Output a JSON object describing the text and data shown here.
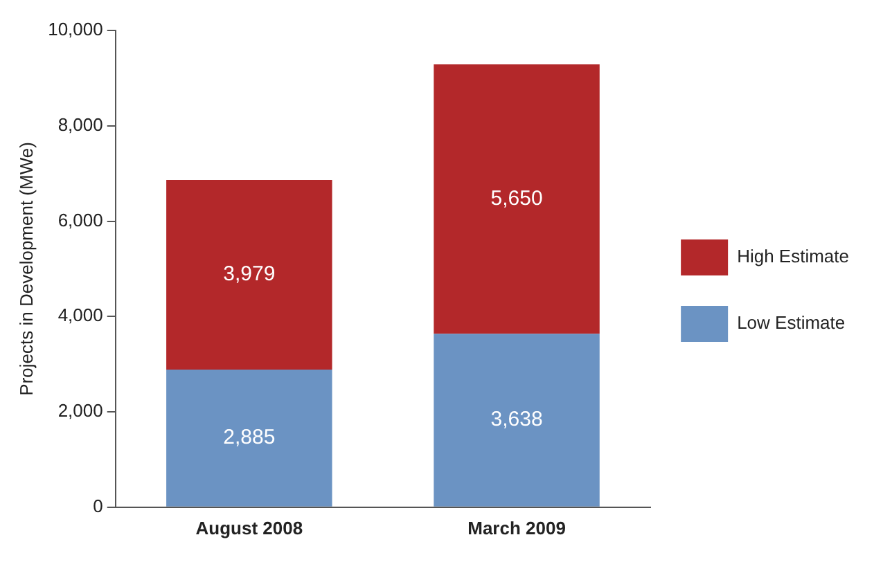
{
  "chart_data": {
    "type": "bar",
    "stacked": true,
    "ylabel": "Projects in Development (MWe)",
    "categories": [
      "August 2008",
      "March 2009"
    ],
    "series": [
      {
        "name": "Low Estimate",
        "color": "#6b93c3",
        "values": [
          2885,
          3638
        ],
        "value_labels": [
          "2,885",
          "3,638"
        ]
      },
      {
        "name": "High Estimate",
        "color": "#b3282a",
        "values": [
          3979,
          5650
        ],
        "value_labels": [
          "3,979",
          "5,650"
        ]
      }
    ],
    "ylim": [
      0,
      10000
    ],
    "yticks": [
      {
        "value": 0,
        "label": "0"
      },
      {
        "value": 2000,
        "label": "2,000"
      },
      {
        "value": 4000,
        "label": "4,000"
      },
      {
        "value": 6000,
        "label": "6,000"
      },
      {
        "value": 8000,
        "label": "8,000"
      },
      {
        "value": 10000,
        "label": "10,000"
      }
    ],
    "grid": false,
    "legend": "right"
  }
}
